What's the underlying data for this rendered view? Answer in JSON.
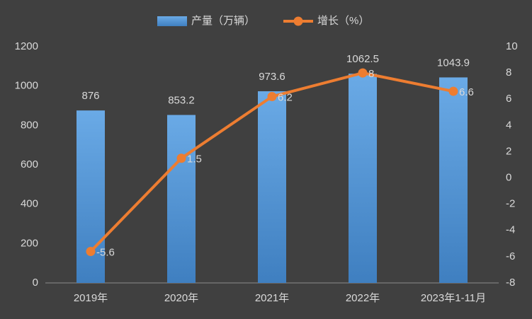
{
  "chart_data": {
    "type": "bar",
    "categories": [
      "2019年",
      "2020年",
      "2021年",
      "2022年",
      "2023年1-11月"
    ],
    "series": [
      {
        "name": "产量（万辆）",
        "type": "bar",
        "color": "#5b9bd5",
        "values": [
          876,
          853.2,
          973.6,
          1062.5,
          1043.9
        ]
      },
      {
        "name": "增长（%）",
        "type": "line",
        "axis": "y2",
        "color": "#ed7d31",
        "values": [
          -5.6,
          1.5,
          6.2,
          8,
          6.6
        ]
      }
    ],
    "ylim": [
      0,
      1200
    ],
    "yticks": [
      0,
      200,
      400,
      600,
      800,
      1000,
      1200
    ],
    "y2lim": [
      -8,
      10
    ],
    "y2ticks": [
      -8,
      -6,
      -4,
      -2,
      0,
      2,
      4,
      6,
      8,
      10
    ],
    "grid": false,
    "legend": "top"
  }
}
